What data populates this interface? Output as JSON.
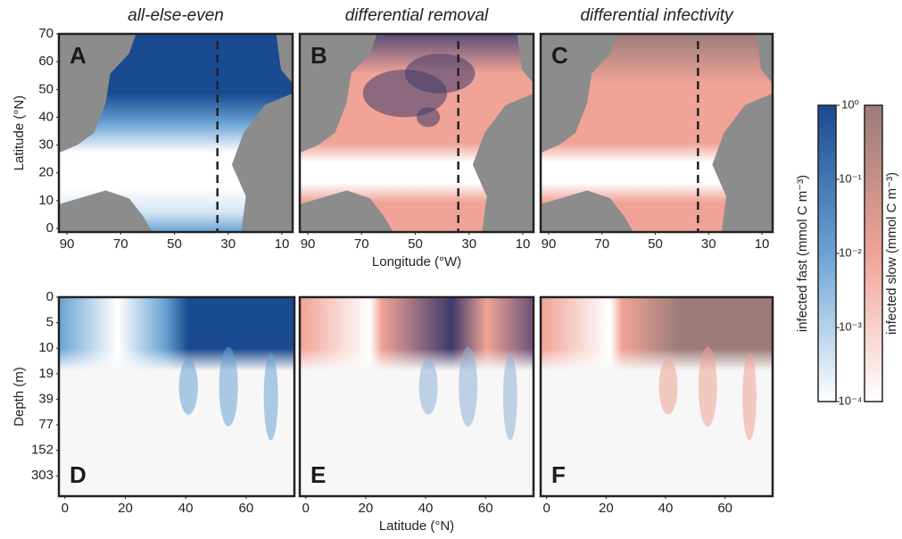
{
  "chart_data": [
    {
      "type": "heatmap",
      "panel": "A",
      "title": "all-else-even",
      "colormap": "fast",
      "ylabel": "Latitude (°N)",
      "xlim": [
        93,
        6
      ],
      "ylim": [
        0,
        70
      ],
      "xticks": [
        90,
        70,
        50,
        30,
        10
      ],
      "yticks": [
        0,
        10,
        20,
        30,
        40,
        50,
        60,
        70
      ],
      "transect": 34
    },
    {
      "type": "heatmap",
      "panel": "B",
      "title": "differential removal",
      "colormap": "both",
      "xlabel": "Longitude (°W)",
      "xlim": [
        93,
        6
      ],
      "ylim": [
        0,
        70
      ],
      "xticks": [
        90,
        70,
        50,
        30,
        10
      ],
      "transect": 34
    },
    {
      "type": "heatmap",
      "panel": "C",
      "title": "differential infectivity",
      "colormap": "slow",
      "xlim": [
        93,
        6
      ],
      "ylim": [
        0,
        70
      ],
      "xticks": [
        90,
        70,
        50,
        30,
        10
      ],
      "transect": 34
    },
    {
      "type": "section",
      "panel": "D",
      "colormap": "fast",
      "ylabel": "Depth (m)",
      "xlim": [
        -2,
        76
      ],
      "xticks": [
        0,
        20,
        40,
        60
      ],
      "yticks": [
        0,
        5,
        10,
        19,
        39,
        77,
        152,
        303
      ]
    },
    {
      "type": "section",
      "panel": "E",
      "colormap": "both",
      "xlabel": "Latitude (°N)",
      "xlim": [
        -2,
        76
      ],
      "xticks": [
        0,
        20,
        40,
        60
      ]
    },
    {
      "type": "section",
      "panel": "F",
      "colormap": "slow",
      "xlim": [
        -2,
        76
      ],
      "xticks": [
        0,
        20,
        40,
        60
      ]
    }
  ],
  "colorbar": {
    "log": true,
    "lim": [
      0.0001,
      1
    ],
    "ticks": [
      {
        "value": 1,
        "label": "10⁰"
      },
      {
        "value": 0.1,
        "label": "10⁻¹"
      },
      {
        "value": 0.01,
        "label": "10⁻²"
      },
      {
        "value": 0.001,
        "label": "10⁻³"
      },
      {
        "value": 0.0001,
        "label": "10⁻⁴"
      }
    ],
    "fast": {
      "label": "infected fast (mmol C m⁻³)",
      "colors": [
        "#ffffff",
        "#6aa3d4",
        "#1a4a8f"
      ]
    },
    "slow": {
      "label": "infected slow (mmol C m⁻³)",
      "colors": [
        "#ffffff",
        "#f0a396",
        "#9c7b78"
      ]
    }
  }
}
